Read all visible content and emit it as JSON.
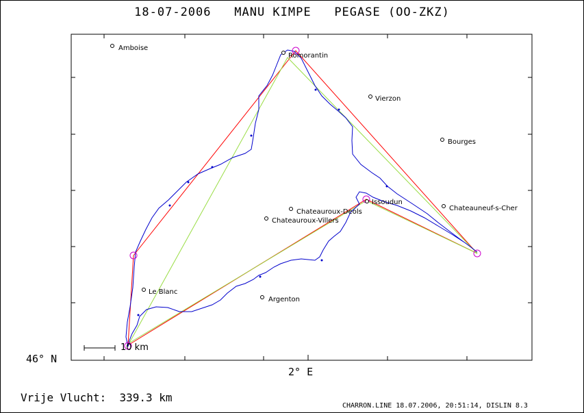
{
  "header": {
    "date": "18-07-2006",
    "pilot": "MANU KIMPE",
    "glider": "PEGASE (OO-ZKZ)"
  },
  "axes": {
    "lat_label": "46° N",
    "lon_label": "2° E"
  },
  "scale_bar": {
    "label": "10 km"
  },
  "summary": {
    "label": "Vrije Vlucht:",
    "value": "339.3 km"
  },
  "footer": "CHARRON.LINE 18.07.2006, 20:51:14, DISLIN 8.3",
  "towns": [
    {
      "name": "Amboise"
    },
    {
      "name": "Romorantin"
    },
    {
      "name": "Vierzon"
    },
    {
      "name": "Bourges"
    },
    {
      "name": "Chateauneuf-s-Cher"
    },
    {
      "name": "Issoudun"
    },
    {
      "name": "Chateauroux-Deols"
    },
    {
      "name": "Chateauroux-Villers"
    },
    {
      "name": "Le Blanc"
    },
    {
      "name": "Argenton"
    }
  ],
  "colors": {
    "track": "#0000cc",
    "task_red": "#ff0000",
    "task_green": "#99dd44",
    "turnpoint": "#cc00cc",
    "axis": "#000000"
  }
}
